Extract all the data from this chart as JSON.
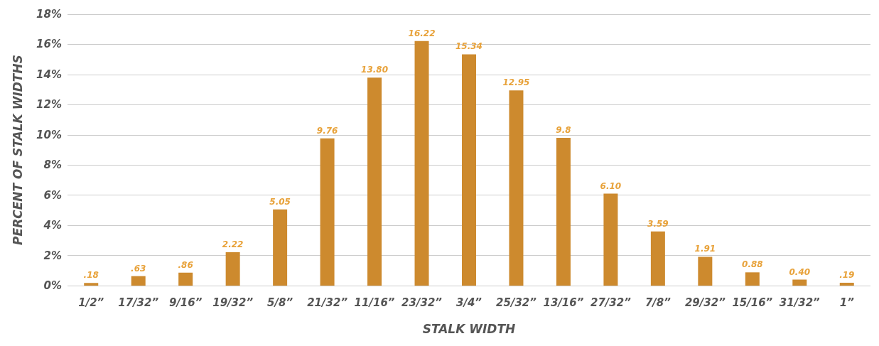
{
  "chart_data": {
    "type": "bar",
    "xlabel": "STALK WIDTH",
    "ylabel": "PERCENT OF STALK WIDTHS",
    "categories": [
      "1/2”",
      "17/32”",
      "9/16”",
      "19/32”",
      "5/8”",
      "21/32”",
      "11/16”",
      "23/32”",
      "3/4”",
      "25/32”",
      "13/16”",
      "27/32”",
      "7/8”",
      "29/32”",
      "15/16”",
      "31/32”",
      "1”"
    ],
    "series": [
      {
        "color": "#cd8a2e",
        "values": [
          0.18,
          0.63,
          0.86,
          2.22,
          5.05,
          9.76,
          13.8,
          16.22,
          15.34,
          12.95,
          9.8,
          6.1,
          3.59,
          1.91,
          0.88,
          0.4,
          0.19
        ],
        "value_labels": [
          ".18",
          ".63",
          ".86",
          "2.22",
          "5.05",
          "9.76",
          "13.80",
          "16.22",
          "15.34",
          "12.95",
          "9.8",
          "6.10",
          "3.59",
          "1.91",
          "0.88",
          "0.40",
          ".19"
        ]
      }
    ],
    "ylim": [
      0,
      18
    ],
    "yticks": [
      {
        "value": 0,
        "label": "0%"
      },
      {
        "value": 2,
        "label": "2%"
      },
      {
        "value": 4,
        "label": "4%"
      },
      {
        "value": 6,
        "label": "6%"
      },
      {
        "value": 8,
        "label": "8%"
      },
      {
        "value": 10,
        "label": "10%"
      },
      {
        "value": 12,
        "label": "12%"
      },
      {
        "value": 14,
        "label": "14%"
      },
      {
        "value": 16,
        "label": "16%"
      },
      {
        "value": 18,
        "label": "18%"
      }
    ],
    "grid": "y"
  }
}
